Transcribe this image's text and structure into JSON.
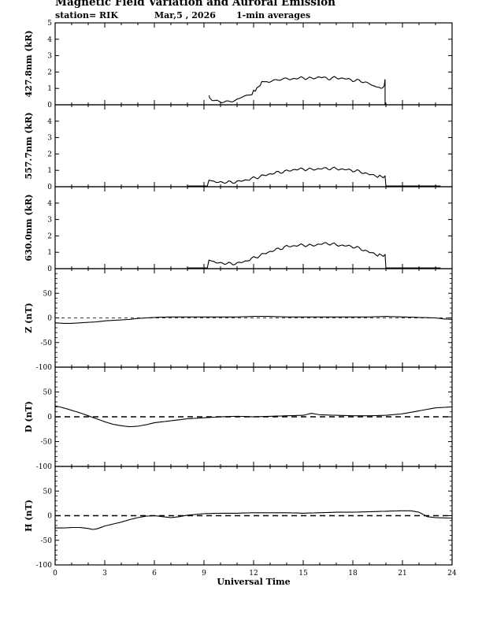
{
  "header": {
    "title": "Magnetic Field Variation and Auroral Emission",
    "station": "station= RIK",
    "date": "Mar,5  , 2026",
    "averaging": "1-min averages"
  },
  "chart_data": [
    {
      "id": "p427",
      "type": "line",
      "ylabel": "427.8nm (kR)",
      "ylim": [
        0,
        5
      ],
      "yticks": [
        0,
        1,
        2,
        3,
        4,
        5
      ],
      "yticklabels": [
        "0",
        "1",
        "2",
        "3",
        "4",
        "5"
      ],
      "x": [
        9.3,
        9.35,
        9.5,
        9.8,
        10.2,
        10.6,
        11.0,
        11.3,
        11.6,
        11.9,
        12.1,
        12.3,
        12.5,
        12.8,
        13.2,
        13.6,
        14.0,
        14.5,
        15.0,
        15.5,
        16.0,
        16.5,
        17.0,
        17.5,
        18.0,
        18.5,
        19.0,
        19.3,
        19.6,
        19.8,
        19.9,
        19.95
      ],
      "y": [
        0.55,
        0.4,
        0.25,
        0.22,
        0.2,
        0.25,
        0.3,
        0.45,
        0.6,
        0.7,
        0.9,
        1.1,
        1.35,
        1.45,
        1.5,
        1.55,
        1.55,
        1.6,
        1.65,
        1.6,
        1.7,
        1.6,
        1.65,
        1.6,
        1.5,
        1.45,
        1.3,
        1.2,
        1.0,
        1.05,
        1.1,
        1.55
      ],
      "dropline_x": 19.95
    },
    {
      "id": "p557",
      "type": "line",
      "ylabel": "557.7nm (kR)",
      "ylim": [
        0,
        5
      ],
      "yticks": [
        0,
        1,
        2,
        3,
        4
      ],
      "yticklabels": [
        "0",
        "1",
        "2",
        "3",
        "4"
      ],
      "x": [
        8.0,
        9.2,
        9.3,
        9.6,
        10.0,
        10.5,
        11.0,
        11.5,
        12.0,
        12.5,
        13.0,
        13.5,
        14.0,
        14.5,
        15.0,
        15.5,
        16.0,
        16.5,
        17.0,
        17.5,
        18.0,
        18.5,
        19.0,
        19.5,
        19.95,
        20.0,
        23.3
      ],
      "y": [
        0.05,
        0.05,
        0.38,
        0.32,
        0.28,
        0.27,
        0.3,
        0.4,
        0.52,
        0.65,
        0.78,
        0.88,
        0.95,
        1.05,
        1.08,
        1.05,
        1.1,
        1.12,
        1.1,
        1.05,
        1.0,
        0.9,
        0.75,
        0.65,
        0.6,
        0.05,
        0.05
      ]
    },
    {
      "id": "p630",
      "type": "line",
      "ylabel": "630.0nm (kR)",
      "ylim": [
        0,
        5
      ],
      "yticks": [
        0,
        1,
        2,
        3,
        4
      ],
      "yticklabels": [
        "0",
        "1",
        "2",
        "3",
        "4"
      ],
      "x": [
        8.0,
        9.2,
        9.3,
        9.6,
        10.0,
        10.5,
        11.0,
        11.5,
        12.0,
        12.5,
        13.0,
        13.5,
        14.0,
        14.5,
        15.0,
        15.5,
        16.0,
        16.5,
        17.0,
        17.5,
        18.0,
        18.5,
        19.0,
        19.5,
        19.95,
        20.0,
        23.3
      ],
      "y": [
        0.05,
        0.05,
        0.5,
        0.42,
        0.35,
        0.3,
        0.32,
        0.45,
        0.65,
        0.85,
        1.05,
        1.2,
        1.35,
        1.4,
        1.45,
        1.4,
        1.5,
        1.55,
        1.45,
        1.4,
        1.35,
        1.2,
        1.0,
        0.85,
        0.8,
        0.05,
        0.05
      ]
    },
    {
      "id": "pZ",
      "type": "line",
      "ylabel": "Z (nT)",
      "ylim": [
        -100,
        100
      ],
      "yticks": [
        -100,
        -50,
        0,
        50
      ],
      "yticklabels": [
        "-100",
        "-50",
        "0",
        "50"
      ],
      "reference_line": "dashed-thin",
      "x": [
        0,
        0.5,
        1,
        1.5,
        2,
        2.5,
        3,
        3.5,
        4,
        4.5,
        5,
        5.5,
        6,
        7,
        8,
        9,
        10,
        11,
        12,
        13,
        14,
        15,
        16,
        17,
        18,
        19,
        20,
        21,
        22,
        23,
        23.5,
        24
      ],
      "y": [
        -10,
        -11,
        -11,
        -10,
        -9,
        -8,
        -6,
        -5,
        -4,
        -3,
        -1,
        0,
        1,
        2,
        2,
        2,
        2,
        2,
        3,
        3,
        2,
        2,
        2,
        2,
        2,
        2,
        3,
        2,
        1,
        0,
        -2,
        -3
      ]
    },
    {
      "id": "pD",
      "type": "line",
      "ylabel": "D (nT)",
      "ylim": [
        -100,
        100
      ],
      "yticks": [
        -100,
        -50,
        0,
        50
      ],
      "yticklabels": [
        "-100",
        "-50",
        "0",
        "50"
      ],
      "reference_line": "dashed-thick",
      "x": [
        0,
        0.5,
        1,
        1.5,
        2,
        2.5,
        3,
        3.5,
        4,
        4.5,
        5,
        5.5,
        6,
        7,
        8,
        9,
        10,
        11,
        12,
        13,
        14,
        15,
        15.5,
        16,
        17,
        18,
        19,
        20,
        21,
        22,
        23,
        24
      ],
      "y": [
        22,
        18,
        13,
        8,
        2,
        -4,
        -10,
        -15,
        -18,
        -20,
        -19,
        -16,
        -12,
        -8,
        -4,
        -2,
        0,
        1,
        0,
        1,
        2,
        3,
        7,
        4,
        3,
        2,
        2,
        3,
        6,
        12,
        18,
        20
      ]
    },
    {
      "id": "pH",
      "type": "line",
      "ylabel": "H (nT)",
      "ylim": [
        -100,
        100
      ],
      "yticks": [
        -100,
        -50,
        0,
        50
      ],
      "yticklabels": [
        "-100",
        "-50",
        "0",
        "50"
      ],
      "reference_line": "dashed-thick",
      "xlabel": "Universal Time",
      "xlim": [
        0,
        24
      ],
      "xticks": [
        0,
        3,
        6,
        9,
        12,
        15,
        18,
        21,
        24
      ],
      "xticklabels": [
        "0",
        "3",
        "6",
        "9",
        "12",
        "15",
        "18",
        "21",
        "24"
      ],
      "x": [
        0,
        0.5,
        1,
        1.5,
        2,
        2.3,
        2.6,
        3,
        3.5,
        4,
        4.5,
        5,
        5.5,
        6,
        6.5,
        7,
        7.5,
        8,
        9,
        10,
        11,
        12,
        13,
        14,
        15,
        16,
        17,
        18,
        19,
        20,
        21,
        21.5,
        22,
        22.5,
        23,
        24
      ],
      "y": [
        -25,
        -25,
        -24,
        -24,
        -26,
        -28,
        -26,
        -21,
        -17,
        -13,
        -8,
        -4,
        -1,
        0,
        -2,
        -4,
        -2,
        1,
        4,
        5,
        5,
        6,
        6,
        6,
        5,
        6,
        7,
        7,
        8,
        9,
        10,
        10,
        7,
        -2,
        -4,
        -5
      ]
    }
  ]
}
